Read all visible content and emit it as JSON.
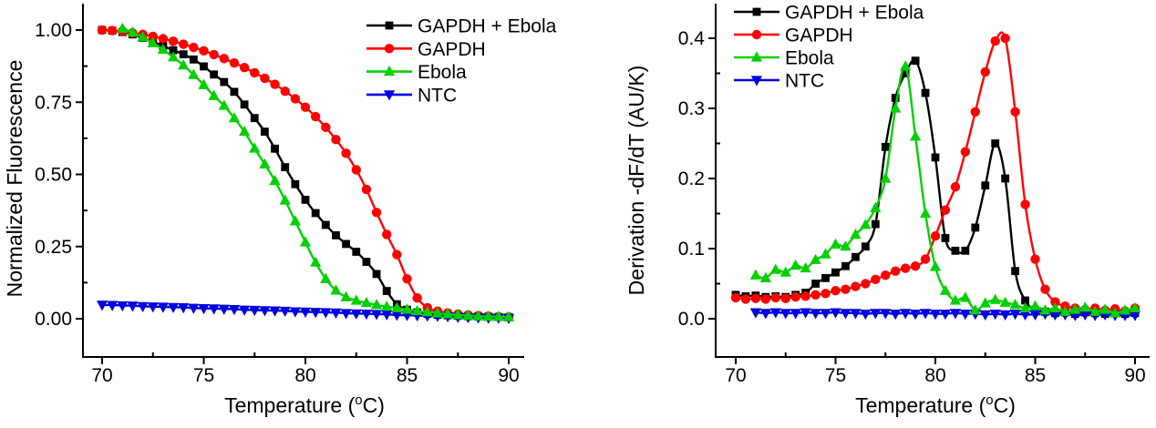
{
  "figure": {
    "background": "#ffffff",
    "text_color": "#000000"
  },
  "chart_data": [
    {
      "id": "melting-curve",
      "type": "line",
      "title": "",
      "xlabel": {
        "pre": "Temperature (",
        "sup": "o",
        "post": "C)"
      },
      "ylabel": "Normalized Fluorescence",
      "x_start": 70,
      "x_step": 0.5,
      "axes": {
        "x": {
          "range": [
            70,
            90
          ],
          "ticks": [
            70,
            75,
            80,
            85,
            90
          ],
          "minor": [
            72.5,
            77.5,
            82.5,
            87.5
          ],
          "decimals": 0
        },
        "y": {
          "range": [
            0,
            1.05
          ],
          "ticks": [
            0,
            0.25,
            0.5,
            0.75,
            1
          ],
          "minor": [
            0.125,
            0.375,
            0.625,
            0.875
          ],
          "decimals": 2
        }
      },
      "legend_position": "top-right-inside",
      "grid": false,
      "series": [
        {
          "name": "GAPDH + Ebola",
          "color": "#000000",
          "marker": "square",
          "values": [
            1.0,
            0.998,
            0.993,
            0.985,
            0.973,
            0.96,
            0.945,
            0.93,
            0.916,
            0.898,
            0.874,
            0.846,
            0.82,
            0.786,
            0.742,
            0.695,
            0.648,
            0.589,
            0.525,
            0.466,
            0.412,
            0.366,
            0.325,
            0.289,
            0.259,
            0.232,
            0.197,
            0.155,
            0.096,
            0.05,
            0.031,
            0.022,
            0.017,
            0.014,
            0.012,
            0.01,
            0.009,
            0.008,
            0.007,
            0.006,
            0.005
          ]
        },
        {
          "name": "GAPDH",
          "color": "#ff0000",
          "marker": "circle",
          "values": [
            1.0,
            0.998,
            0.995,
            0.99,
            0.985,
            0.978,
            0.97,
            0.961,
            0.951,
            0.94,
            0.928,
            0.915,
            0.901,
            0.886,
            0.87,
            0.852,
            0.833,
            0.812,
            0.788,
            0.762,
            0.733,
            0.7,
            0.663,
            0.621,
            0.573,
            0.516,
            0.448,
            0.368,
            0.292,
            0.222,
            0.138,
            0.072,
            0.038,
            0.026,
            0.02,
            0.016,
            0.013,
            0.011,
            0.009,
            0.007,
            0.006
          ]
        },
        {
          "name": "Ebola",
          "color": "#00d000",
          "marker": "triangle-up",
          "values": [
            null,
            null,
            1.005,
            0.992,
            0.975,
            0.955,
            0.932,
            0.906,
            0.878,
            0.845,
            0.81,
            0.772,
            0.738,
            0.695,
            0.648,
            0.59,
            0.535,
            0.478,
            0.41,
            0.338,
            0.265,
            0.195,
            0.138,
            0.098,
            0.075,
            0.063,
            0.055,
            0.048,
            0.042,
            0.037,
            0.032,
            0.027,
            0.023,
            0.019,
            0.016,
            0.013,
            0.011,
            0.009,
            0.008,
            0.007,
            0.006
          ]
        },
        {
          "name": "NTC",
          "color": "#0000e0",
          "marker": "triangle-down",
          "values": [
            0.048,
            0.047,
            0.046,
            0.045,
            0.043,
            0.042,
            0.041,
            0.04,
            0.039,
            0.037,
            0.036,
            0.035,
            0.034,
            0.033,
            0.031,
            0.03,
            0.029,
            0.028,
            0.027,
            0.025,
            0.024,
            0.023,
            0.022,
            0.021,
            0.019,
            0.018,
            0.017,
            0.016,
            0.015,
            0.013,
            0.012,
            0.011,
            0.01,
            0.009,
            0.008,
            0.006,
            0.005,
            0.004,
            0.003,
            0.003,
            0.002
          ]
        }
      ]
    },
    {
      "id": "derivative-melt-peak",
      "type": "line",
      "title": "",
      "xlabel": {
        "pre": "Temperature (",
        "sup": "o",
        "post": "C)"
      },
      "ylabel": "Derivation -dF/dT (AU/K)",
      "x_start": 70,
      "x_step": 0.5,
      "axes": {
        "x": {
          "range": [
            70,
            90
          ],
          "ticks": [
            70,
            75,
            80,
            85,
            90
          ],
          "minor": [
            72.5,
            77.5,
            82.5,
            87.5
          ],
          "decimals": 0
        },
        "y": {
          "range": [
            0,
            0.45
          ],
          "ticks": [
            0,
            0.1,
            0.2,
            0.3,
            0.4
          ],
          "minor": [
            0.05,
            0.15,
            0.25,
            0.35
          ],
          "decimals": 1
        }
      },
      "legend_position": "top-left-inside",
      "grid": false,
      "series": [
        {
          "name": "GAPDH + Ebola",
          "color": "#000000",
          "marker": "square",
          "values": [
            0.034,
            0.032,
            0.033,
            0.031,
            0.032,
            0.031,
            0.034,
            0.037,
            0.05,
            0.058,
            0.066,
            0.075,
            0.088,
            0.103,
            0.135,
            0.245,
            0.315,
            0.35,
            0.368,
            0.322,
            0.23,
            0.115,
            0.097,
            0.097,
            0.13,
            0.19,
            0.25,
            0.2,
            0.068,
            0.026,
            0.012,
            0.01,
            0.008,
            0.009,
            0.007,
            0.009,
            0.008,
            0.007,
            0.009,
            0.007,
            0.008
          ]
        },
        {
          "name": "GAPDH",
          "color": "#ff0000",
          "marker": "circle",
          "values": [
            0.03,
            0.028,
            0.029,
            0.028,
            0.03,
            0.029,
            0.031,
            0.032,
            0.034,
            0.036,
            0.04,
            0.042,
            0.046,
            0.05,
            0.056,
            0.062,
            0.068,
            0.072,
            0.075,
            0.085,
            0.118,
            0.155,
            0.188,
            0.238,
            0.295,
            0.352,
            0.396,
            0.4,
            0.295,
            0.163,
            0.085,
            0.042,
            0.024,
            0.018,
            0.015,
            0.013,
            0.015,
            0.012,
            0.014,
            0.011,
            0.015
          ]
        },
        {
          "name": "Ebola",
          "color": "#00d000",
          "marker": "triangle-up",
          "values": [
            null,
            null,
            0.062,
            0.058,
            0.07,
            0.066,
            0.076,
            0.072,
            0.084,
            0.092,
            0.106,
            0.103,
            0.12,
            0.134,
            0.158,
            0.2,
            0.3,
            0.36,
            0.26,
            0.15,
            0.074,
            0.04,
            0.026,
            0.03,
            0.012,
            0.022,
            0.027,
            0.023,
            0.02,
            0.015,
            0.018,
            0.012,
            0.015,
            0.01,
            0.013,
            0.016,
            0.01,
            0.013,
            0.008,
            0.012,
            0.015
          ]
        },
        {
          "name": "NTC",
          "color": "#0000e0",
          "marker": "triangle-down",
          "values": [
            null,
            null,
            0.009,
            0.008,
            0.009,
            0.008,
            0.008,
            0.009,
            0.008,
            0.008,
            0.009,
            0.008,
            0.008,
            0.007,
            0.008,
            0.008,
            0.007,
            0.008,
            0.007,
            0.008,
            0.007,
            0.007,
            0.008,
            0.007,
            0.007,
            0.006,
            0.007,
            0.006,
            0.007,
            0.006,
            0.006,
            0.007,
            0.006,
            0.006,
            0.005,
            0.006,
            0.005,
            0.006,
            0.005,
            0.005,
            0.005
          ]
        }
      ]
    }
  ]
}
